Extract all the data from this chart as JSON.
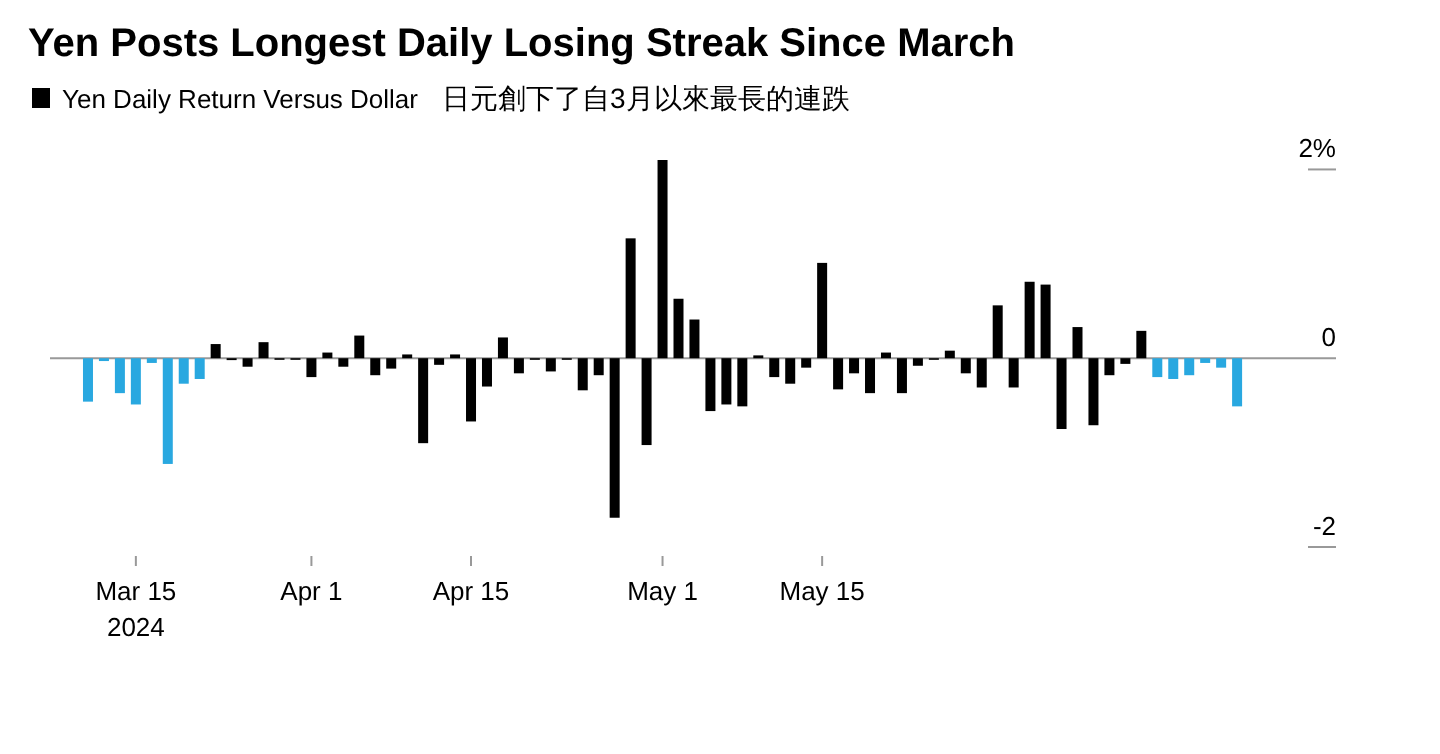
{
  "chart_data": {
    "type": "bar",
    "title": "Yen Posts Longest Daily Losing Streak Since March",
    "subtitle": "日元創下了自3月以來最長的連跌",
    "legend": "top left",
    "annotations": [
      "2024"
    ],
    "categories": [
      null,
      null,
      null,
      "Mar 15",
      null,
      null,
      null,
      null,
      null,
      null,
      null,
      null,
      null,
      null,
      "Apr 1",
      null,
      null,
      null,
      null,
      null,
      null,
      null,
      null,
      null,
      "Apr 15",
      null,
      null,
      null,
      null,
      null,
      null,
      null,
      null,
      null,
      null,
      null,
      "May 1",
      null,
      null,
      null,
      null,
      null,
      null,
      null,
      null,
      null,
      "May 15",
      null,
      null,
      null,
      null,
      null,
      null,
      null,
      null,
      null,
      null,
      null,
      null,
      null,
      null,
      null,
      null,
      null,
      null,
      null,
      null,
      null,
      null,
      null,
      null,
      null,
      null
    ],
    "ylim": [
      -2,
      2.1
    ],
    "yticks": [
      {
        "value": 2,
        "label": "2%"
      },
      0,
      -2
    ],
    "series": [
      {
        "name": "Yen Daily Return Versus Dollar",
        "color": "#000000",
        "values": [
          -0.46,
          -0.03,
          -0.37,
          -0.49,
          -0.05,
          -1.12,
          -0.27,
          -0.22,
          0.15,
          -0.02,
          -0.09,
          0.17,
          -0.01,
          -0.01,
          -0.2,
          0.06,
          -0.09,
          0.24,
          -0.18,
          -0.11,
          0.04,
          -0.9,
          -0.07,
          0.04,
          -0.67,
          -0.3,
          0.22,
          -0.16,
          -0.01,
          -0.14,
          -0.01,
          -0.34,
          -0.18,
          -1.69,
          1.27,
          -0.92,
          2.1,
          0.63,
          0.41,
          -0.56,
          -0.49,
          -0.51,
          0.03,
          -0.2,
          -0.27,
          -0.1,
          1.01,
          -0.33,
          -0.16,
          -0.37,
          0.06,
          -0.37,
          -0.08,
          -0.01,
          0.08,
          -0.16,
          -0.31,
          0.56,
          -0.31,
          0.81,
          0.78,
          -0.75,
          0.33,
          -0.71,
          -0.18,
          -0.06,
          0.29,
          -0.2,
          -0.22,
          -0.18,
          -0.05,
          -0.1,
          -0.51
        ],
        "colors": [
          "#29a8e0",
          "#29a8e0",
          "#29a8e0",
          "#29a8e0",
          "#29a8e0",
          "#29a8e0",
          "#29a8e0",
          "#29a8e0",
          "#000000",
          "#000000",
          "#000000",
          "#000000",
          "#000000",
          "#000000",
          "#000000",
          "#000000",
          "#000000",
          "#000000",
          "#000000",
          "#000000",
          "#000000",
          "#000000",
          "#000000",
          "#000000",
          "#000000",
          "#000000",
          "#000000",
          "#000000",
          "#000000",
          "#000000",
          "#000000",
          "#000000",
          "#000000",
          "#000000",
          "#000000",
          "#000000",
          "#000000",
          "#000000",
          "#000000",
          "#000000",
          "#000000",
          "#000000",
          "#000000",
          "#000000",
          "#000000",
          "#000000",
          "#000000",
          "#000000",
          "#000000",
          "#000000",
          "#000000",
          "#000000",
          "#000000",
          "#000000",
          "#000000",
          "#000000",
          "#000000",
          "#000000",
          "#000000",
          "#000000",
          "#000000",
          "#000000",
          "#000000",
          "#000000",
          "#000000",
          "#000000",
          "#000000",
          "#29a8e0",
          "#29a8e0",
          "#29a8e0",
          "#29a8e0",
          "#29a8e0",
          "#29a8e0"
        ]
      }
    ]
  }
}
